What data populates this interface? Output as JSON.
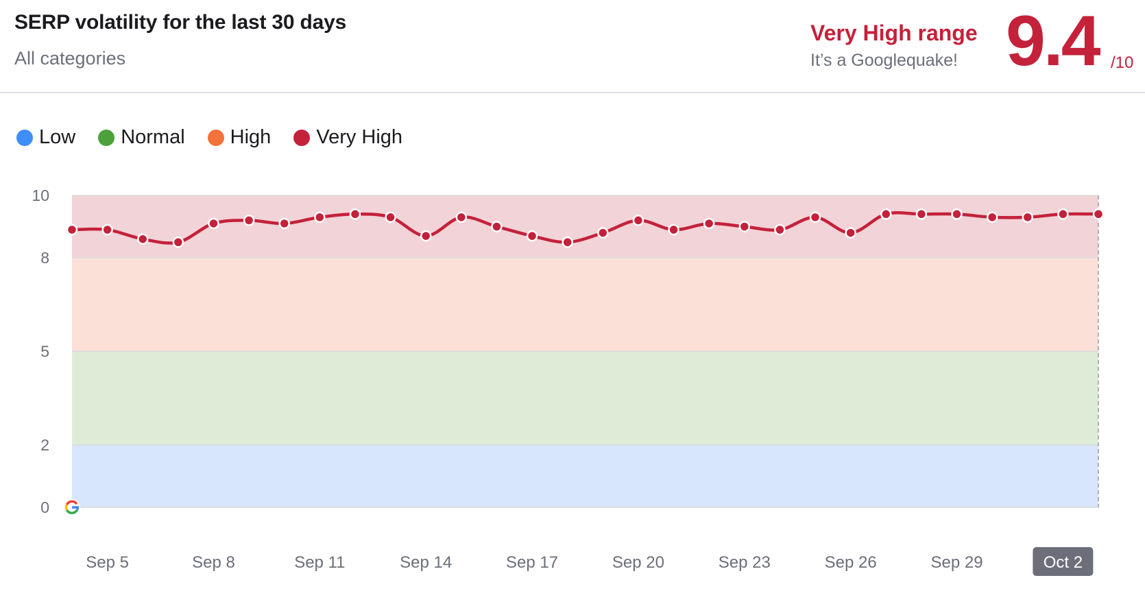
{
  "header": {
    "title": "SERP volatility for the last 30 days",
    "subtitle": "All categories",
    "range_label": "Very High range",
    "range_note": "It’s a Googlequake!",
    "score": "9.4",
    "score_denominator": "/10"
  },
  "legend": [
    {
      "label": "Low",
      "color": "#3e8ef7"
    },
    {
      "label": "Normal",
      "color": "#4da13b"
    },
    {
      "label": "High",
      "color": "#f2733b"
    },
    {
      "label": "Very High",
      "color": "#c4213a"
    }
  ],
  "chart_data": {
    "type": "line",
    "title": "SERP volatility for the last 30 days",
    "ylim": [
      0,
      10
    ],
    "y_ticks": [
      0,
      2,
      5,
      8,
      10
    ],
    "bands": [
      {
        "name": "Low",
        "from": 0,
        "to": 2,
        "color": "#d7e6fc"
      },
      {
        "name": "Normal",
        "from": 2,
        "to": 5,
        "color": "#deecd7"
      },
      {
        "name": "High",
        "from": 5,
        "to": 8,
        "color": "#fbe0d8"
      },
      {
        "name": "Very High",
        "from": 8,
        "to": 10,
        "color": "#f2d3d7"
      }
    ],
    "x_labels": [
      "Sep 5",
      "Sep 8",
      "Sep 11",
      "Sep 14",
      "Sep 17",
      "Sep 20",
      "Sep 23",
      "Sep 26",
      "Sep 29",
      "Oct 2"
    ],
    "x_label_index": [
      3,
      6,
      9,
      12,
      15,
      18,
      21,
      24,
      27,
      30
    ],
    "active_label": "Oct 2",
    "series": [
      {
        "color": "#c4213a",
        "values": [
          8.9,
          8.9,
          8.6,
          8.5,
          9.1,
          9.2,
          9.1,
          9.3,
          9.4,
          9.3,
          8.7,
          9.3,
          9.0,
          8.7,
          8.5,
          8.8,
          9.2,
          8.9,
          9.1,
          9.0,
          8.9,
          9.3,
          8.8,
          9.4,
          9.4,
          9.4,
          9.3,
          9.3,
          9.4,
          9.4
        ]
      }
    ]
  }
}
